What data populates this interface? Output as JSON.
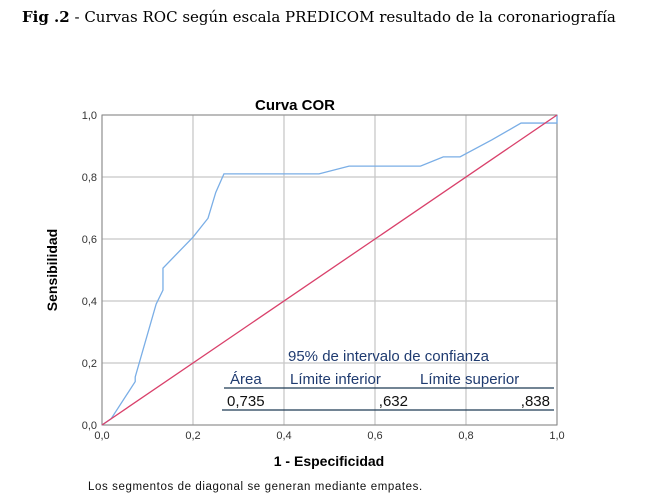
{
  "caption": {
    "label": "Fig .2",
    "text": " - Curvas ROC según escala PREDICOM resultado de la coronariografía"
  },
  "chart_data": {
    "type": "line",
    "title": "Curva COR",
    "xlabel": "1 - Especificidad",
    "ylabel": "Sensibilidad",
    "xlim": [
      0,
      1
    ],
    "ylim": [
      0,
      1
    ],
    "grid": true,
    "xticks": [
      "0,0",
      "0,2",
      "0,4",
      "0,6",
      "0,8",
      "1,0"
    ],
    "yticks": [
      "0,0",
      "0,2",
      "0,4",
      "0,6",
      "0,8",
      "1,0"
    ],
    "series": [
      {
        "color": "#7aaee6",
        "x": [
          0,
          0.02,
          0.073,
          0.073,
          0.119,
          0.134,
          0.134,
          0.134,
          0.2,
          0.233,
          0.25,
          0.268,
          0.477,
          0.543,
          0.7,
          0.75,
          0.787,
          0.857,
          0.921,
          1.0,
          1.0
        ],
        "y": [
          0,
          0.02,
          0.14,
          0.155,
          0.39,
          0.435,
          0.445,
          0.506,
          0.606,
          0.667,
          0.75,
          0.81,
          0.81,
          0.835,
          0.835,
          0.865,
          0.865,
          0.92,
          0.974,
          0.974,
          1.0
        ]
      },
      {
        "color": "#d9416b",
        "x": [
          0,
          1
        ],
        "y": [
          0,
          1
        ]
      }
    ],
    "footnote": "Los segmentos de diagonal se generan mediante empates.",
    "table": {
      "group_header": "95% de intervalo de confianza",
      "headers": [
        "Área",
        "Límite inferior",
        "Límite superior"
      ],
      "values": [
        "0,735",
        ",632",
        ",838"
      ]
    }
  }
}
